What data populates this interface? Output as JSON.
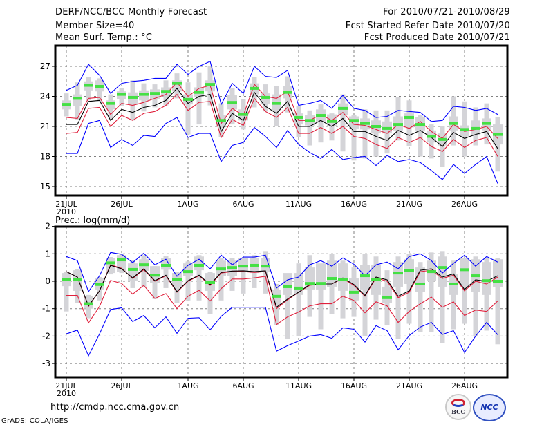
{
  "header": {
    "title": "DERF/NCC/BCC Monthly Forecast",
    "member_size": "Member Size=40",
    "top_var": "Mean Surf. Temp.: °C",
    "for_range": "For 2010/07/21-2010/08/29",
    "started": "Fcst Started Refer Date 2010/07/20",
    "produced": "Fcst Produced Date 2010/07/21"
  },
  "footer": {
    "url": "http://cmdp.ncc.cma.gov.cn",
    "grads": "GrADS: COLA/IGES",
    "logo_bcc": "BCC",
    "logo_ncc": "NCC"
  },
  "colors": {
    "envelope": "#0000ff",
    "spread": "#e0203c",
    "median": "#000000",
    "marker": "#44e044",
    "box": "#d4d4d8",
    "grid": "#808080"
  },
  "chart_data": [
    {
      "type": "line",
      "title": "Mean Surf. Temp.: °C",
      "xlabel": "",
      "ylabel": "°C",
      "ylim": [
        14,
        29
      ],
      "yticks": [
        15,
        18,
        21,
        24,
        27
      ],
      "xticks": [
        {
          "day": 0,
          "label": "21JUL",
          "sub": "2010"
        },
        {
          "day": 5,
          "label": "26JUL"
        },
        {
          "day": 11,
          "label": "1AUG"
        },
        {
          "day": 16,
          "label": "6AUG"
        },
        {
          "day": 21,
          "label": "11AUG"
        },
        {
          "day": 26,
          "label": "16AUG"
        },
        {
          "day": 31,
          "label": "21AUG"
        },
        {
          "day": 36,
          "label": "26AUG"
        }
      ],
      "grid": true,
      "x_start": "2010-07-21",
      "n_days": 40,
      "series": [
        {
          "name": "max",
          "role": "envelope",
          "values": [
            24.6,
            25.1,
            27.2,
            26.1,
            24.3,
            25.3,
            25.5,
            25.6,
            25.8,
            25.8,
            27.2,
            26.2,
            27.0,
            27.5,
            23.2,
            25.3,
            24.3,
            27.0,
            26.0,
            25.9,
            26.6,
            23.1,
            23.3,
            23.6,
            22.8,
            24.1,
            22.8,
            22.6,
            21.9,
            22.0,
            22.6,
            22.5,
            22.4,
            21.5,
            21.6,
            23.0,
            22.9,
            22.6,
            22.8,
            22.2
          ]
        },
        {
          "name": "upper",
          "role": "spread",
          "values": [
            21.9,
            21.8,
            23.8,
            23.9,
            22.2,
            23.3,
            23.1,
            23.4,
            23.8,
            24.2,
            25.4,
            24.0,
            24.8,
            25.1,
            21.3,
            22.8,
            22.1,
            25.2,
            24.0,
            23.8,
            24.5,
            21.6,
            21.6,
            22.2,
            21.6,
            22.4,
            21.2,
            21.1,
            20.7,
            20.3,
            21.2,
            20.8,
            21.5,
            20.5,
            19.8,
            21.2,
            20.5,
            20.7,
            21.0,
            19.8
          ]
        },
        {
          "name": "median",
          "role": "median",
          "values": [
            21.2,
            21.2,
            23.5,
            23.6,
            21.6,
            22.7,
            22.4,
            22.9,
            23.1,
            23.6,
            24.8,
            23.3,
            24.0,
            24.2,
            20.5,
            22.3,
            21.6,
            24.4,
            23.0,
            22.3,
            23.5,
            21.0,
            21.0,
            21.6,
            21.0,
            21.8,
            20.5,
            20.5,
            20.0,
            19.6,
            20.6,
            20.1,
            20.6,
            19.9,
            19.0,
            20.4,
            19.8,
            20.2,
            20.5,
            18.8
          ]
        },
        {
          "name": "lower",
          "role": "spread",
          "values": [
            20.3,
            20.4,
            22.8,
            22.9,
            21.0,
            22.1,
            21.6,
            22.3,
            22.5,
            23.1,
            24.2,
            22.6,
            23.4,
            23.5,
            19.9,
            21.7,
            21.1,
            23.8,
            22.5,
            21.9,
            22.9,
            20.3,
            20.3,
            20.9,
            20.3,
            21.0,
            20.0,
            19.8,
            19.2,
            18.8,
            19.9,
            19.4,
            19.9,
            19.0,
            18.5,
            19.7,
            18.9,
            19.6,
            19.9,
            18.0
          ]
        },
        {
          "name": "min",
          "role": "envelope",
          "values": [
            18.3,
            18.3,
            21.3,
            21.6,
            18.9,
            19.7,
            19.1,
            20.1,
            20.0,
            21.3,
            21.9,
            19.9,
            20.3,
            20.3,
            17.5,
            19.1,
            19.4,
            20.9,
            20.0,
            18.9,
            20.6,
            19.2,
            18.4,
            17.8,
            18.7,
            17.7,
            17.9,
            18.0,
            17.1,
            18.1,
            17.5,
            17.7,
            17.4,
            16.6,
            15.7,
            17.2,
            16.3,
            17.2,
            18.0,
            15.3
          ]
        },
        {
          "name": "ens-mean",
          "role": "marker",
          "values": [
            23.2,
            23.8,
            25.1,
            25.0,
            23.3,
            24.2,
            23.9,
            24.2,
            24.3,
            24.5,
            25.3,
            23.7,
            24.4,
            25.2,
            21.6,
            23.4,
            22.2,
            24.8,
            23.9,
            23.3,
            24.4,
            21.9,
            21.6,
            22.1,
            21.5,
            22.8,
            21.6,
            21.3,
            21.0,
            20.8,
            21.2,
            21.9,
            21.2,
            20.0,
            19.7,
            21.3,
            20.7,
            20.8,
            21.3,
            20.2
          ]
        }
      ],
      "boxes": {
        "p25": [
          22.7,
          23.0,
          24.6,
          24.5,
          22.7,
          23.7,
          23.2,
          23.6,
          23.7,
          24.0,
          24.5,
          23.2,
          23.9,
          24.5,
          21.0,
          22.7,
          21.6,
          24.2,
          23.2,
          22.6,
          23.8,
          21.2,
          21.1,
          21.5,
          21.0,
          22.1,
          20.8,
          20.7,
          20.3,
          20.3,
          20.6,
          20.9,
          20.6,
          19.4,
          19.1,
          20.6,
          20.0,
          20.1,
          20.6,
          19.2
        ],
        "p75": [
          23.6,
          24.2,
          25.5,
          25.6,
          23.6,
          24.5,
          24.4,
          24.6,
          24.7,
          24.9,
          25.6,
          24.2,
          24.9,
          25.6,
          22.1,
          24.1,
          22.7,
          25.3,
          24.3,
          24.2,
          25.0,
          22.3,
          22.1,
          22.7,
          22.2,
          23.3,
          22.0,
          21.8,
          21.6,
          21.5,
          22.0,
          22.3,
          21.9,
          20.6,
          20.3,
          22.0,
          21.1,
          21.6,
          21.8,
          21.2
        ],
        "lo": [
          22.0,
          21.7,
          23.6,
          23.5,
          21.8,
          23.0,
          21.6,
          22.5,
          22.9,
          23.1,
          23.8,
          20.2,
          21.2,
          23.1,
          19.9,
          21.2,
          20.7,
          22.9,
          22.5,
          21.0,
          22.4,
          19.9,
          19.1,
          19.4,
          19.6,
          18.5,
          17.6,
          17.8,
          18.0,
          18.3,
          19.6,
          19.0,
          18.0,
          17.8,
          17.0,
          19.1,
          18.0,
          19.1,
          19.2,
          16.5
        ],
        "hi": [
          24.3,
          25.4,
          25.9,
          25.8,
          24.2,
          24.8,
          25.6,
          25.3,
          25.2,
          25.6,
          26.3,
          25.4,
          26.4,
          27.0,
          23.3,
          24.8,
          23.7,
          25.9,
          25.2,
          25.0,
          26.0,
          23.0,
          22.6,
          23.2,
          22.3,
          24.2,
          22.1,
          22.7,
          22.6,
          22.6,
          23.9,
          23.6,
          22.1,
          21.2,
          21.0,
          24.0,
          23.5,
          22.9,
          23.3,
          21.9
        ]
      }
    },
    {
      "type": "line",
      "title": "Prec.: log(mm/d)",
      "xlabel": "",
      "ylabel": "log(mm/d)",
      "ylim": [
        -3.5,
        2
      ],
      "yticks": [
        -3,
        -2,
        -1,
        0,
        1,
        2
      ],
      "xticks": [
        {
          "day": 0,
          "label": "21JUL",
          "sub": "2010"
        },
        {
          "day": 5,
          "label": "26JUL"
        },
        {
          "day": 11,
          "label": "1AUG"
        },
        {
          "day": 16,
          "label": "6AUG"
        },
        {
          "day": 21,
          "label": "11AUG"
        },
        {
          "day": 26,
          "label": "16AUG"
        },
        {
          "day": 31,
          "label": "21AUG"
        },
        {
          "day": 36,
          "label": "26AUG"
        }
      ],
      "grid": true,
      "x_start": "2010-07-21",
      "n_days": 40,
      "series": [
        {
          "name": "max",
          "role": "envelope",
          "values": [
            0.9,
            0.75,
            -0.38,
            0.2,
            1.05,
            0.98,
            0.68,
            1.02,
            0.6,
            0.8,
            0.18,
            0.58,
            0.8,
            0.45,
            0.95,
            0.6,
            0.88,
            0.88,
            0.95,
            -0.25,
            0.05,
            0.15,
            0.6,
            0.75,
            0.55,
            0.85,
            0.62,
            0.2,
            0.6,
            0.7,
            0.45,
            0.9,
            1.0,
            0.75,
            0.3,
            0.65,
            0.95,
            0.55,
            0.9,
            0.7
          ]
        },
        {
          "name": "upper",
          "role": "spread",
          "values": [
            0.35,
            0.15,
            -0.92,
            -0.35,
            0.6,
            0.47,
            0.1,
            0.42,
            0.0,
            0.2,
            -0.4,
            0.0,
            0.2,
            -0.15,
            0.3,
            0.35,
            0.35,
            0.32,
            0.35,
            -1.0,
            -0.68,
            -0.4,
            -0.15,
            -0.1,
            -0.1,
            0.1,
            -0.15,
            -0.55,
            0.12,
            0.0,
            -0.6,
            -0.4,
            0.35,
            0.4,
            0.1,
            0.22,
            -0.35,
            0.0,
            -0.1,
            0.15
          ]
        },
        {
          "name": "median",
          "role": "median",
          "values": [
            0.35,
            0.15,
            -0.9,
            -0.35,
            0.58,
            0.45,
            0.12,
            0.45,
            0.02,
            0.22,
            -0.38,
            0.02,
            0.22,
            -0.12,
            0.32,
            0.37,
            0.38,
            0.35,
            0.38,
            -0.95,
            -0.65,
            -0.4,
            -0.12,
            -0.1,
            -0.1,
            0.12,
            -0.12,
            -0.52,
            0.15,
            0.05,
            -0.55,
            -0.35,
            0.4,
            0.45,
            0.15,
            0.27,
            -0.3,
            0.05,
            0.0,
            0.2
          ]
        },
        {
          "name": "lower",
          "role": "spread",
          "values": [
            -0.52,
            -0.52,
            -1.52,
            -0.92,
            0.03,
            -0.08,
            -0.47,
            -0.15,
            -0.63,
            -0.45,
            -1.0,
            -0.55,
            -0.33,
            -0.72,
            -0.27,
            0.08,
            0.08,
            0.12,
            0.18,
            -1.58,
            -1.3,
            -1.12,
            -0.9,
            -0.82,
            -0.82,
            -0.55,
            -0.7,
            -1.15,
            -0.75,
            -0.9,
            -1.5,
            -1.1,
            -0.82,
            -0.58,
            -0.95,
            -0.75,
            -1.25,
            -1.05,
            -1.1,
            -0.72
          ]
        },
        {
          "name": "min",
          "role": "envelope",
          "values": [
            -1.92,
            -1.78,
            -2.72,
            -1.92,
            -1.03,
            -0.97,
            -1.47,
            -1.25,
            -1.7,
            -1.3,
            -1.9,
            -1.35,
            -1.33,
            -1.77,
            -1.28,
            -0.95,
            -0.95,
            -0.95,
            -0.95,
            -2.55,
            -2.35,
            -2.18,
            -2.0,
            -1.95,
            -2.08,
            -1.7,
            -1.75,
            -2.22,
            -1.62,
            -1.8,
            -2.5,
            -1.98,
            -1.67,
            -1.5,
            -1.94,
            -1.8,
            -2.6,
            -2.0,
            -1.5,
            -1.95
          ]
        },
        {
          "name": "ens-mean",
          "role": "marker",
          "values": [
            0.05,
            0.05,
            -0.82,
            -0.12,
            0.67,
            0.78,
            0.43,
            0.6,
            0.22,
            0.58,
            0.07,
            0.35,
            0.58,
            -0.05,
            0.45,
            0.5,
            0.55,
            0.58,
            0.55,
            -0.55,
            -0.2,
            -0.25,
            -0.08,
            -0.08,
            0.1,
            0.05,
            -0.4,
            0.2,
            0.05,
            -0.6,
            0.3,
            0.4,
            -0.1,
            0.35,
            0.5,
            -0.1,
            0.42,
            0.2,
            0.02,
            0.0
          ]
        }
      ],
      "boxes": {
        "p25": [
          -0.18,
          -0.35,
          -1.0,
          -0.3,
          0.3,
          0.35,
          0.0,
          0.38,
          -0.05,
          0.42,
          -0.2,
          0.2,
          0.4,
          -0.35,
          0.2,
          0.2,
          0.35,
          0.3,
          0.35,
          -0.9,
          -0.5,
          -0.5,
          -0.3,
          -0.3,
          -0.2,
          -0.35,
          -0.7,
          -0.3,
          -0.5,
          -0.8,
          -0.2,
          -0.1,
          -0.4,
          0.0,
          -0.2,
          -0.5,
          -0.2,
          -0.4,
          -0.5,
          -0.2
        ],
        "p75": [
          0.3,
          0.4,
          -0.55,
          0.1,
          0.85,
          0.95,
          0.65,
          0.8,
          0.55,
          0.85,
          0.3,
          0.65,
          0.9,
          0.3,
          0.75,
          0.75,
          0.85,
          0.85,
          0.85,
          -0.3,
          0.3,
          0.3,
          0.5,
          0.65,
          0.75,
          0.65,
          0.1,
          0.6,
          0.6,
          -0.2,
          0.7,
          0.8,
          0.5,
          0.75,
          0.9,
          0.25,
          0.85,
          0.8,
          0.7,
          0.8
        ],
        "lo": [
          -1.1,
          -0.8,
          -1.35,
          -0.7,
          0.25,
          0.3,
          -0.25,
          -0.2,
          -0.65,
          -0.25,
          -0.8,
          -0.7,
          -0.7,
          -1.2,
          -0.7,
          -0.35,
          -0.45,
          -0.25,
          -0.45,
          -1.6,
          -2.1,
          -2.0,
          -1.3,
          -1.75,
          -1.2,
          -1.35,
          -1.3,
          -2.0,
          -1.4,
          -1.6,
          -2.1,
          -1.55,
          -1.85,
          -1.85,
          -2.25,
          -1.75,
          -1.55,
          -2.0,
          -1.8,
          -2.3
        ],
        "hi": [
          0.35,
          0.45,
          -0.5,
          0.15,
          0.88,
          1.0,
          0.78,
          0.95,
          0.55,
          0.92,
          0.35,
          0.72,
          0.95,
          0.35,
          0.85,
          0.85,
          0.85,
          0.95,
          1.1,
          -0.1,
          -0.1,
          0.65,
          0.95,
          0.5,
          1.0,
          0.75,
          0.5,
          1.0,
          0.9,
          0.4,
          0.9,
          1.0,
          0.7,
          1.05,
          1.1,
          0.75,
          0.85,
          0.9,
          0.85,
          0.85
        ]
      }
    }
  ]
}
